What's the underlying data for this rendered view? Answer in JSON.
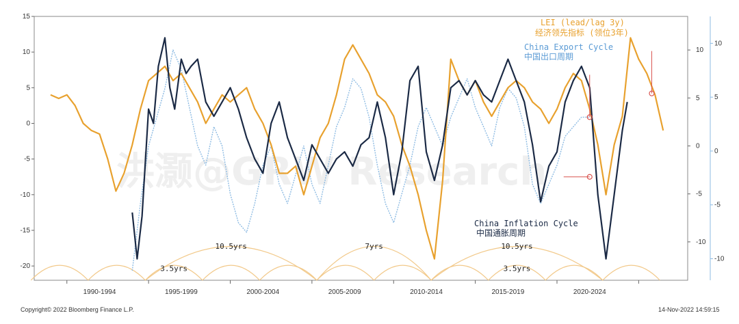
{
  "chart_data": {
    "type": "line",
    "left_axis": {
      "min": -22,
      "max": 15,
      "ticks": [
        15,
        10,
        5,
        0,
        -5,
        -10,
        -15,
        -20
      ]
    },
    "right_axis_inner": {
      "min": -14,
      "max": 13.5,
      "ticks": [
        10,
        5,
        0,
        -5,
        -10
      ]
    },
    "right_axis_outer": {
      "min": -12,
      "max": 12.5,
      "ticks": [
        10,
        5,
        0,
        -5,
        -10
      ]
    },
    "x_range": [
      1988,
      2028
    ],
    "x_tick_labels": [
      "1990-1994",
      "1995-1999",
      "2000-2004",
      "2005-2009",
      "2010-2014",
      "2015-2019",
      "2020-2024"
    ],
    "x_tick_centers": [
      1992,
      1997,
      2002,
      2007,
      2012,
      2017,
      2022
    ],
    "series": [
      {
        "name": "LEI (lead/lag 3y)",
        "name_cn": "经济领先指标 (领位3年)",
        "color": "#E8A12E",
        "axis": "left",
        "points": [
          [
            1989,
            4
          ],
          [
            1989.5,
            3.5
          ],
          [
            1990,
            4
          ],
          [
            1990.5,
            2.5
          ],
          [
            1991,
            0
          ],
          [
            1991.5,
            -1
          ],
          [
            1992,
            -1.5
          ],
          [
            1992.5,
            -5
          ],
          [
            1993,
            -9.5
          ],
          [
            1993.5,
            -7
          ],
          [
            1994,
            -3
          ],
          [
            1994.5,
            2
          ],
          [
            1995,
            6
          ],
          [
            1995.5,
            7
          ],
          [
            1996,
            8
          ],
          [
            1996.5,
            6
          ],
          [
            1997,
            7
          ],
          [
            1997.5,
            5
          ],
          [
            1998,
            3
          ],
          [
            1998.5,
            0
          ],
          [
            1999,
            2
          ],
          [
            1999.5,
            4
          ],
          [
            2000,
            3
          ],
          [
            2000.5,
            4
          ],
          [
            2001,
            5
          ],
          [
            2001.5,
            2
          ],
          [
            2002,
            0
          ],
          [
            2002.5,
            -3
          ],
          [
            2003,
            -7
          ],
          [
            2003.5,
            -7
          ],
          [
            2004,
            -6
          ],
          [
            2004.5,
            -10
          ],
          [
            2005,
            -6
          ],
          [
            2005.5,
            -2
          ],
          [
            2006,
            0
          ],
          [
            2006.5,
            4
          ],
          [
            2007,
            9
          ],
          [
            2007.5,
            11
          ],
          [
            2008,
            9
          ],
          [
            2008.5,
            7
          ],
          [
            2009,
            4
          ],
          [
            2009.5,
            3
          ],
          [
            2010,
            1
          ],
          [
            2010.5,
            -3
          ],
          [
            2011,
            -6
          ],
          [
            2011.5,
            -10
          ],
          [
            2012,
            -15
          ],
          [
            2012.5,
            -19
          ],
          [
            2013,
            -8
          ],
          [
            2013.5,
            9
          ],
          [
            2014,
            6
          ],
          [
            2014.5,
            4
          ],
          [
            2015,
            6
          ],
          [
            2015.5,
            3
          ],
          [
            2016,
            1
          ],
          [
            2016.5,
            3
          ],
          [
            2017,
            5
          ],
          [
            2017.5,
            6
          ],
          [
            2018,
            5
          ],
          [
            2018.5,
            3
          ],
          [
            2019,
            2
          ],
          [
            2019.5,
            0
          ],
          [
            2020,
            2
          ],
          [
            2020.5,
            5
          ],
          [
            2021,
            7
          ],
          [
            2021.5,
            6
          ],
          [
            2022,
            2
          ],
          [
            2022.5,
            -3
          ],
          [
            2023,
            -10
          ],
          [
            2023.5,
            -3
          ],
          [
            2024,
            1
          ],
          [
            2024.5,
            12
          ],
          [
            2025,
            9
          ],
          [
            2025.5,
            7
          ],
          [
            2026,
            4
          ],
          [
            2026.5,
            -1
          ]
        ]
      },
      {
        "name": "China Export Cycle",
        "name_cn": "中国出口周期",
        "color": "#8DBBE3",
        "axis": "right_inner",
        "points": [
          [
            1994,
            -13
          ],
          [
            1994.5,
            -6
          ],
          [
            1995,
            0
          ],
          [
            1995.5,
            3
          ],
          [
            1996,
            6
          ],
          [
            1996.5,
            10
          ],
          [
            1997,
            8
          ],
          [
            1997.5,
            4
          ],
          [
            1998,
            0
          ],
          [
            1998.5,
            -2
          ],
          [
            1999,
            2
          ],
          [
            1999.5,
            0
          ],
          [
            2000,
            -5
          ],
          [
            2000.5,
            -8
          ],
          [
            2001,
            -9
          ],
          [
            2001.5,
            -6
          ],
          [
            2002,
            -2
          ],
          [
            2002.5,
            0
          ],
          [
            2003,
            -4
          ],
          [
            2003.5,
            -6
          ],
          [
            2004,
            -3
          ],
          [
            2004.5,
            0
          ],
          [
            2005,
            -4
          ],
          [
            2005.5,
            -6
          ],
          [
            2006,
            -2
          ],
          [
            2006.5,
            2
          ],
          [
            2007,
            4
          ],
          [
            2007.5,
            7
          ],
          [
            2008,
            6
          ],
          [
            2008.5,
            3
          ],
          [
            2009,
            -2
          ],
          [
            2009.5,
            -6
          ],
          [
            2010,
            -8
          ],
          [
            2010.5,
            -5
          ],
          [
            2011,
            -2
          ],
          [
            2011.5,
            2
          ],
          [
            2012,
            4
          ],
          [
            2012.5,
            2
          ],
          [
            2013,
            0
          ],
          [
            2013.5,
            3
          ],
          [
            2014,
            5
          ],
          [
            2014.5,
            7
          ],
          [
            2015,
            4
          ],
          [
            2015.5,
            2
          ],
          [
            2016,
            0
          ],
          [
            2016.5,
            4
          ],
          [
            2017,
            6
          ],
          [
            2017.5,
            5
          ],
          [
            2018,
            2
          ],
          [
            2018.5,
            -4
          ],
          [
            2019,
            -6
          ],
          [
            2019.5,
            -4
          ],
          [
            2020,
            -2
          ],
          [
            2020.5,
            1
          ],
          [
            2021,
            2
          ],
          [
            2021.5,
            3
          ],
          [
            2022,
            3
          ]
        ]
      },
      {
        "name": "China Inflation Cycle",
        "name_cn": "中国通胀周期",
        "color": "#1B2A45",
        "axis": "left",
        "points": [
          [
            1994,
            -12.5
          ],
          [
            1994.3,
            -19
          ],
          [
            1994.6,
            -13
          ],
          [
            1995,
            2
          ],
          [
            1995.3,
            0
          ],
          [
            1995.6,
            8
          ],
          [
            1996,
            12
          ],
          [
            1996.3,
            5
          ],
          [
            1996.6,
            2
          ],
          [
            1997,
            9
          ],
          [
            1997.3,
            7
          ],
          [
            1997.6,
            8
          ],
          [
            1998,
            9
          ],
          [
            1998.5,
            3
          ],
          [
            1999,
            1
          ],
          [
            1999.5,
            3
          ],
          [
            2000,
            5
          ],
          [
            2000.5,
            2
          ],
          [
            2001,
            -2
          ],
          [
            2001.5,
            -5
          ],
          [
            2002,
            -7
          ],
          [
            2002.5,
            0
          ],
          [
            2003,
            3
          ],
          [
            2003.5,
            -2
          ],
          [
            2004,
            -5
          ],
          [
            2004.5,
            -8
          ],
          [
            2005,
            -3
          ],
          [
            2005.5,
            -5
          ],
          [
            2006,
            -7
          ],
          [
            2006.5,
            -5
          ],
          [
            2007,
            -4
          ],
          [
            2007.5,
            -6
          ],
          [
            2008,
            -3
          ],
          [
            2008.5,
            -2
          ],
          [
            2009,
            3
          ],
          [
            2009.5,
            -2
          ],
          [
            2010,
            -10
          ],
          [
            2010.5,
            -4
          ],
          [
            2011,
            6
          ],
          [
            2011.5,
            8
          ],
          [
            2012,
            -4
          ],
          [
            2012.5,
            -8
          ],
          [
            2013,
            -3
          ],
          [
            2013.5,
            5
          ],
          [
            2014,
            6
          ],
          [
            2014.5,
            4
          ],
          [
            2015,
            6
          ],
          [
            2015.5,
            4
          ],
          [
            2016,
            3
          ],
          [
            2016.5,
            6
          ],
          [
            2017,
            9
          ],
          [
            2017.5,
            6
          ],
          [
            2018,
            3
          ],
          [
            2018.5,
            -3
          ],
          [
            2019,
            -11
          ],
          [
            2019.5,
            -6
          ],
          [
            2020,
            -4
          ],
          [
            2020.5,
            3
          ],
          [
            2021,
            6
          ],
          [
            2021.5,
            8
          ],
          [
            2022,
            5
          ],
          [
            2022.5,
            -10
          ],
          [
            2023,
            -19
          ],
          [
            2023.5,
            -10
          ],
          [
            2024,
            -1
          ],
          [
            2024.3,
            3
          ]
        ]
      }
    ],
    "cycle_annotations": [
      {
        "label": "10.5yrs",
        "from": 1994.8,
        "to": 2005.3,
        "row": "upper"
      },
      {
        "label": "7yrs",
        "from": 2005.3,
        "to": 2012.3,
        "row": "upper"
      },
      {
        "label": "10.5yrs",
        "from": 2012.3,
        "to": 2022.8,
        "row": "upper"
      },
      {
        "label": "3.5yrs",
        "from": 1994.8,
        "to": 1998.3,
        "row": "lower"
      },
      {
        "label": "3.5yrs",
        "from": 2015.8,
        "to": 2019.3,
        "row": "lower"
      }
    ],
    "lower_arcs": [
      1987.8,
      1991.3,
      1994.8,
      1998.3,
      2001.8,
      2005.3,
      2008.8,
      2012.3,
      2015.8,
      2019.3,
      2022.8,
      2026.3
    ],
    "markers": [
      {
        "series": "China Export Cycle",
        "year": 2022,
        "value": 3
      },
      {
        "series": "LEI (lead/lag 3y)",
        "year": 2025.8,
        "value": 4.2
      },
      {
        "series": "China Inflation Cycle",
        "year": 2022,
        "value": -7.5
      }
    ]
  },
  "labels": {
    "lei_en": "LEI (lead/lag 3y)",
    "lei_cn": "经济领先指标 (领位3年)",
    "export_en": "China Export Cycle",
    "export_cn": "中国出口周期",
    "inflation_en": "China Inflation Cycle",
    "inflation_cn": "中国通胀周期",
    "watermark": "洪灏@GRW Research"
  },
  "footer": {
    "copyright": "Copyright© 2022 Bloomberg Finance L.P.",
    "timestamp": "14-Nov-2022 14:59:15"
  },
  "colors": {
    "lei": "#E8A12E",
    "export": "#8DBBE3",
    "inflation": "#1B2A45",
    "marker": "#D9534F"
  }
}
